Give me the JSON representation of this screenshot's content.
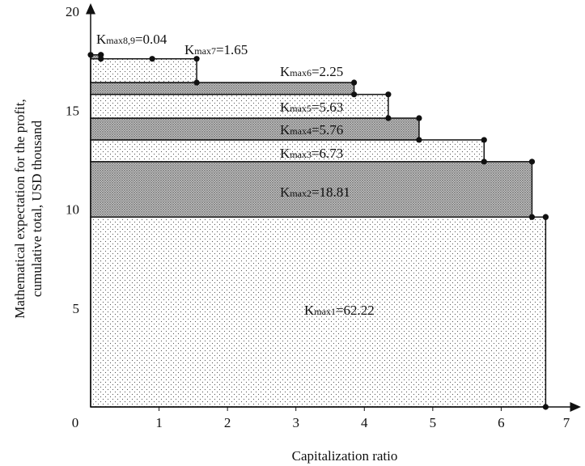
{
  "chart_data": {
    "type": "bar",
    "xlabel": "Capitalization ratio",
    "ylabel_lines": [
      "Mathematical expectation for the profit,",
      "cumulative total, USD thousand"
    ],
    "xlim": [
      0,
      7
    ],
    "ylim": [
      0,
      20
    ],
    "x_ticks": [
      "0",
      "1",
      "2",
      "3",
      "4",
      "5",
      "6",
      "7"
    ],
    "y_ticks": [
      "5",
      "10",
      "15",
      "20"
    ],
    "bars": [
      {
        "label_main": "K",
        "label_sub": "max1",
        "label_value": "=62.22",
        "x_end": 6.65,
        "y_bottom": 0,
        "y_top": 9.6,
        "fill": "dots"
      },
      {
        "label_main": "K",
        "label_sub": "max2",
        "label_value": "=18.81",
        "x_end": 6.45,
        "y_bottom": 9.6,
        "y_top": 12.4,
        "fill": "dense"
      },
      {
        "label_main": "K",
        "label_sub": "max3",
        "label_value": "=6.73",
        "x_end": 5.75,
        "y_bottom": 12.4,
        "y_top": 13.5,
        "fill": "dots"
      },
      {
        "label_main": "K",
        "label_sub": "max4",
        "label_value": "=5.76",
        "x_end": 4.8,
        "y_bottom": 13.5,
        "y_top": 14.6,
        "fill": "dense"
      },
      {
        "label_main": "K",
        "label_sub": "max5",
        "label_value": "=5.63",
        "x_end": 4.35,
        "y_bottom": 14.6,
        "y_top": 15.8,
        "fill": "dots"
      },
      {
        "label_main": "K",
        "label_sub": "max6",
        "label_value": "=2.25",
        "x_end": 3.85,
        "y_bottom": 15.8,
        "y_top": 16.4,
        "fill": "dense"
      },
      {
        "label_main": "K",
        "label_sub": "max7",
        "label_value": "=1.65",
        "x_end": 1.55,
        "y_bottom": 16.4,
        "y_top": 17.6,
        "fill": "dots"
      },
      {
        "label_main": "K",
        "label_sub": "max8,9",
        "label_value": "=0.04",
        "x_end": 0.15,
        "y_bottom": 17.6,
        "y_top": 17.8,
        "fill": "dense"
      }
    ],
    "extra_points": [
      {
        "x": 0.0,
        "y": 17.8
      },
      {
        "x": 0.15,
        "y": 17.8
      },
      {
        "x": 0.9,
        "y": 17.6
      },
      {
        "x": 6.65,
        "y": 0
      },
      {
        "x": 6.65,
        "y": 9.6
      }
    ]
  }
}
